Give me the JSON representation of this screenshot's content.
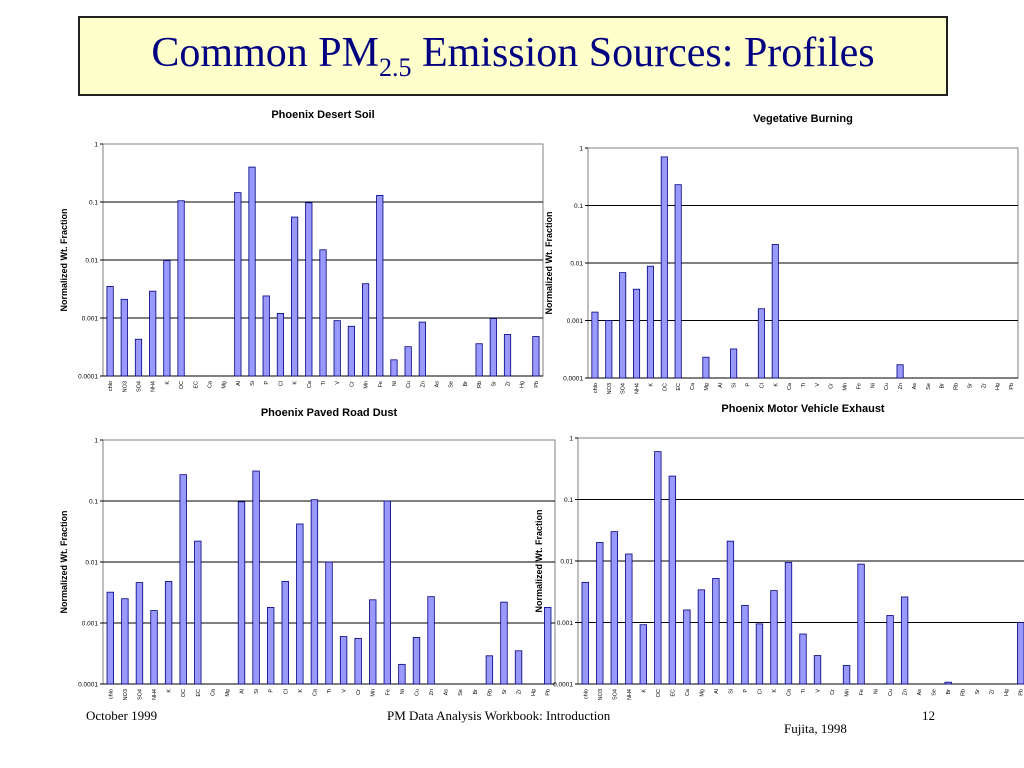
{
  "slide": {
    "title_main": "Common PM",
    "title_sub": "2.5",
    "title_rest": " Emission Sources: Profiles",
    "footer_left": "October 1999",
    "footer_center": "PM Data Analysis Workbook: Introduction",
    "footer_right": "12",
    "citation": "Fujita, 1998"
  },
  "colors": {
    "bar_fill": "#9999ff",
    "bar_stroke": "#000080",
    "title_bg": "#ffffcc",
    "title_text": "#000080"
  },
  "chart_data": [
    {
      "type": "bar",
      "title": "Phoenix Desert Soil",
      "ylabel": "Normalized Wt. Fraction",
      "yscale": "log",
      "ylim": [
        0.0001,
        1
      ],
      "yticks": [
        "1",
        "0.1",
        "0.01",
        "0.001",
        "0.0001"
      ],
      "grid": true,
      "categories": [
        "chlo",
        "NO3",
        "SO4",
        "NH4",
        "K",
        "OC",
        "EC",
        "Ca",
        "Mg",
        "Al",
        "Si",
        "P",
        "Cl",
        "K",
        "Ca",
        "Ti",
        "V",
        "Cr",
        "Mn",
        "Fe",
        "Ni",
        "Cu",
        "Zn",
        "As",
        "Se",
        "Br",
        "Rb",
        "Sr",
        "Zr",
        "Hg",
        "Pb"
      ],
      "values": [
        0.0035,
        0.0021,
        0.00043,
        0.0029,
        0.0098,
        0.105,
        null,
        null,
        null,
        0.145,
        0.4,
        0.0024,
        0.0012,
        0.055,
        0.097,
        0.015,
        0.0009,
        0.00072,
        0.0039,
        0.13,
        0.00019,
        0.00032,
        0.00085,
        null,
        null,
        null,
        0.00036,
        0.00098,
        0.00052,
        null,
        0.00048
      ]
    },
    {
      "type": "bar",
      "title": "Vegetative Burning",
      "ylabel": "Normalized Wt. Fraction",
      "yscale": "log",
      "ylim": [
        0.0001,
        1
      ],
      "yticks": [
        "1",
        "0.1",
        "0.01",
        "0.001",
        "0.0001"
      ],
      "grid": true,
      "categories": [
        "chlo",
        "NO3",
        "SO4",
        "NH4",
        "K",
        "OC",
        "EC",
        "Ca",
        "Mg",
        "Al",
        "Si",
        "P",
        "Cl",
        "K",
        "Ca",
        "Ti",
        "V",
        "Cr",
        "Mn",
        "Fe",
        "Ni",
        "Cu",
        "Zn",
        "As",
        "Se",
        "Br",
        "Rb",
        "Sr",
        "Zr",
        "Hg",
        "Pb"
      ],
      "values": [
        0.0014,
        0.001,
        0.0068,
        0.0035,
        0.0088,
        0.7,
        0.23,
        null,
        0.00023,
        null,
        0.00032,
        null,
        0.0016,
        0.021,
        null,
        null,
        null,
        null,
        null,
        null,
        null,
        null,
        0.00017,
        null,
        null,
        null,
        null,
        null,
        null,
        null,
        null
      ]
    },
    {
      "type": "bar",
      "title": "Phoenix Paved Road Dust",
      "ylabel": "Normalized Wt. Fraction",
      "yscale": "log",
      "ylim": [
        0.0001,
        1
      ],
      "yticks": [
        "1",
        "0.1",
        "0.01",
        "0.001",
        "0.0001"
      ],
      "grid": true,
      "categories": [
        "chlo",
        "NO3",
        "SO4",
        "NH4",
        "K",
        "OC",
        "EC",
        "Ca",
        "Mg",
        "Al",
        "Si",
        "P",
        "Cl",
        "K",
        "Ca",
        "Ti",
        "V",
        "Cr",
        "Mn",
        "Fe",
        "Ni",
        "Cu",
        "Zn",
        "As",
        "Se",
        "Br",
        "Rb",
        "Sr",
        "Zr",
        "Hg",
        "Pb"
      ],
      "values": [
        0.0032,
        0.0025,
        0.0046,
        0.0016,
        0.0048,
        0.27,
        0.022,
        null,
        null,
        0.097,
        0.31,
        0.0018,
        0.0048,
        0.042,
        0.105,
        0.01,
        0.0006,
        0.00056,
        0.0024,
        0.1,
        0.00021,
        0.00058,
        0.0027,
        null,
        null,
        null,
        0.00029,
        0.0022,
        0.00035,
        null,
        0.0018
      ]
    },
    {
      "type": "bar",
      "title": "Phoenix Motor Vehicle Exhaust",
      "ylabel": "Normalized Wt. Fraction",
      "yscale": "log",
      "ylim": [
        0.0001,
        1
      ],
      "yticks": [
        "1",
        "0.1",
        "0.01",
        "0.001",
        "0.0001"
      ],
      "grid": true,
      "categories": [
        "chlo",
        "NO3",
        "SO4",
        "NH4",
        "K",
        "OC",
        "EC",
        "Ca",
        "Mg",
        "Al",
        "Si",
        "P",
        "Cl",
        "K",
        "Ca",
        "Ti",
        "V",
        "Cr",
        "Mn",
        "Fe",
        "Ni",
        "Cu",
        "Zn",
        "As",
        "Se",
        "Br",
        "Rb",
        "Sr",
        "Zr",
        "Hg",
        "Pb"
      ],
      "values": [
        0.0045,
        0.02,
        0.03,
        0.013,
        0.00092,
        0.6,
        0.24,
        0.0016,
        0.0034,
        0.0052,
        0.021,
        0.0019,
        0.00095,
        0.0033,
        0.0095,
        0.00065,
        0.00029,
        null,
        0.0002,
        0.0089,
        null,
        0.0013,
        0.0026,
        null,
        null,
        0.000107,
        null,
        null,
        null,
        null,
        0.001
      ]
    }
  ]
}
